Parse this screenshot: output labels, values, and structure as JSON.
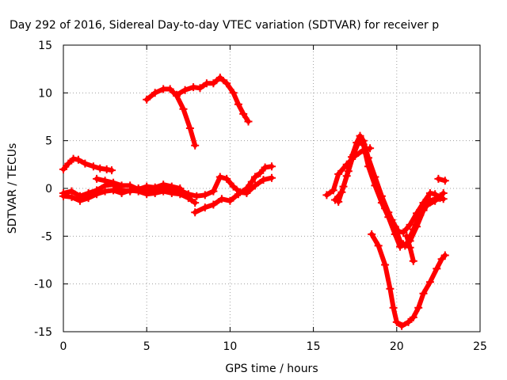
{
  "chart_data": {
    "type": "scatter",
    "title": "Day 292 of 2016, Sidereal Day-to-day VTEC variation (SDTVAR) for receiver p",
    "xlabel": "GPS time / hours",
    "ylabel": "SDTVAR / TECUs",
    "xlim": [
      0,
      25
    ],
    "ylim": [
      -15,
      15
    ],
    "x_ticks": [
      "0",
      "5",
      "10",
      "15",
      "20",
      "25"
    ],
    "y_ticks": [
      "15",
      "10",
      "5",
      "0",
      "-5",
      "-10",
      "-15"
    ],
    "x_tick_values": [
      0,
      5,
      10,
      15,
      20,
      25
    ],
    "y_tick_values": [
      15,
      10,
      5,
      0,
      -5,
      -10,
      -15
    ],
    "grid": true,
    "marker": "plus",
    "color": "#ff0000",
    "series": [
      {
        "points": [
          [
            5.0,
            9.3
          ],
          [
            5.5,
            10.0
          ],
          [
            6.0,
            10.4
          ],
          [
            6.4,
            10.4
          ],
          [
            6.8,
            9.7
          ],
          [
            7.2,
            8.3
          ],
          [
            7.6,
            6.3
          ],
          [
            7.9,
            4.5
          ]
        ]
      },
      {
        "points": [
          [
            6.8,
            9.8
          ],
          [
            7.3,
            10.3
          ],
          [
            7.8,
            10.6
          ],
          [
            8.2,
            10.5
          ],
          [
            8.6,
            11.0
          ],
          [
            9.0,
            11.0
          ],
          [
            9.4,
            11.6
          ],
          [
            9.8,
            11.0
          ],
          [
            10.2,
            10.0
          ],
          [
            10.5,
            8.8
          ],
          [
            10.8,
            7.8
          ],
          [
            11.1,
            7.0
          ]
        ]
      },
      {
        "points": [
          [
            0.0,
            2.0
          ],
          [
            0.3,
            2.6
          ],
          [
            0.6,
            3.1
          ],
          [
            0.9,
            3.0
          ],
          [
            1.3,
            2.6
          ],
          [
            1.8,
            2.3
          ],
          [
            2.2,
            2.1
          ],
          [
            2.6,
            2.0
          ],
          [
            2.9,
            1.9
          ]
        ]
      },
      {
        "points": [
          [
            0.0,
            -0.5
          ],
          [
            0.5,
            -0.3
          ],
          [
            1.0,
            -0.8
          ],
          [
            1.5,
            -0.5
          ],
          [
            2.0,
            -0.2
          ],
          [
            2.5,
            0.3
          ],
          [
            3.0,
            0.4
          ],
          [
            3.5,
            -0.2
          ],
          [
            4.0,
            -0.3
          ],
          [
            4.5,
            0.0
          ],
          [
            5.0,
            -0.1
          ],
          [
            5.5,
            -0.1
          ],
          [
            6.0,
            0.2
          ],
          [
            6.5,
            -0.2
          ],
          [
            7.0,
            -0.2
          ],
          [
            7.5,
            -0.6
          ],
          [
            8.0,
            -0.8
          ],
          [
            8.5,
            -0.7
          ],
          [
            9.0,
            -0.3
          ],
          [
            9.4,
            1.2
          ],
          [
            9.8,
            1.0
          ],
          [
            10.2,
            0.2
          ],
          [
            10.6,
            -0.4
          ],
          [
            11.0,
            -0.5
          ],
          [
            11.5,
            0.3
          ],
          [
            12.0,
            0.9
          ],
          [
            12.5,
            1.1
          ]
        ]
      },
      {
        "points": [
          [
            0.0,
            -0.8
          ],
          [
            0.5,
            -0.9
          ],
          [
            1.0,
            -1.3
          ],
          [
            1.5,
            -1.0
          ],
          [
            2.0,
            -0.6
          ],
          [
            2.5,
            -0.3
          ],
          [
            3.0,
            -0.2
          ],
          [
            3.5,
            -0.5
          ],
          [
            4.0,
            -0.2
          ],
          [
            4.5,
            -0.3
          ],
          [
            5.0,
            -0.6
          ],
          [
            5.5,
            -0.5
          ],
          [
            6.0,
            -0.3
          ],
          [
            6.5,
            -0.5
          ],
          [
            7.0,
            -0.6
          ],
          [
            7.5,
            -1.0
          ],
          [
            7.9,
            -1.5
          ]
        ]
      },
      {
        "points": [
          [
            2.0,
            1.0
          ],
          [
            2.5,
            0.8
          ],
          [
            3.0,
            0.6
          ],
          [
            3.5,
            0.3
          ],
          [
            4.0,
            0.3
          ],
          [
            4.5,
            -0.1
          ],
          [
            5.0,
            0.2
          ],
          [
            5.5,
            0.1
          ],
          [
            6.0,
            0.4
          ],
          [
            6.5,
            0.2
          ],
          [
            7.0,
            0.0
          ]
        ]
      },
      {
        "points": [
          [
            7.9,
            -2.5
          ],
          [
            8.5,
            -2.0
          ],
          [
            9.0,
            -1.7
          ],
          [
            9.5,
            -1.1
          ],
          [
            10.0,
            -1.3
          ],
          [
            10.5,
            -0.6
          ],
          [
            11.0,
            0.0
          ],
          [
            11.3,
            0.7
          ],
          [
            11.5,
            1.2
          ],
          [
            11.8,
            1.6
          ],
          [
            12.1,
            2.2
          ],
          [
            12.5,
            2.3
          ]
        ]
      },
      {
        "points": [
          [
            15.8,
            -0.7
          ],
          [
            16.2,
            -0.2
          ],
          [
            16.5,
            1.5
          ],
          [
            17.0,
            2.5
          ],
          [
            17.5,
            3.4
          ],
          [
            18.0,
            4.0
          ],
          [
            18.4,
            4.2
          ]
        ]
      },
      {
        "points": [
          [
            16.3,
            -1.2
          ],
          [
            16.7,
            -0.4
          ],
          [
            17.0,
            1.3
          ],
          [
            17.3,
            3.3
          ],
          [
            17.6,
            4.8
          ],
          [
            17.8,
            5.5
          ],
          [
            18.0,
            5.0
          ],
          [
            18.3,
            3.2
          ],
          [
            18.7,
            1.2
          ],
          [
            19.1,
            -0.8
          ],
          [
            19.5,
            -2.5
          ],
          [
            19.9,
            -4.0
          ],
          [
            20.2,
            -5.5
          ],
          [
            20.5,
            -6.0
          ],
          [
            20.8,
            -5.5
          ],
          [
            21.2,
            -4.0
          ],
          [
            21.6,
            -2.3
          ],
          [
            22.0,
            -1.3
          ],
          [
            22.4,
            -1.0
          ],
          [
            22.8,
            -1.1
          ]
        ]
      },
      {
        "points": [
          [
            16.5,
            -1.4
          ],
          [
            16.8,
            0.2
          ],
          [
            17.1,
            1.8
          ],
          [
            17.4,
            3.5
          ],
          [
            17.7,
            4.8
          ],
          [
            18.0,
            4.6
          ],
          [
            18.3,
            2.3
          ],
          [
            18.7,
            0.3
          ],
          [
            19.1,
            -1.5
          ],
          [
            19.5,
            -3.0
          ],
          [
            19.9,
            -4.8
          ],
          [
            20.2,
            -6.1
          ],
          [
            20.6,
            -5.8
          ],
          [
            21.0,
            -4.3
          ],
          [
            21.4,
            -2.8
          ],
          [
            21.8,
            -1.8
          ],
          [
            22.3,
            -1.3
          ],
          [
            22.8,
            -0.5
          ]
        ]
      },
      {
        "points": [
          [
            19.3,
            -2.1
          ],
          [
            19.7,
            -3.3
          ],
          [
            20.1,
            -4.5
          ],
          [
            20.4,
            -4.6
          ],
          [
            20.8,
            -3.8
          ],
          [
            21.2,
            -2.6
          ],
          [
            21.6,
            -1.5
          ],
          [
            22.0,
            -0.5
          ],
          [
            22.3,
            -0.6
          ],
          [
            22.6,
            -1.0
          ]
        ]
      },
      {
        "points": [
          [
            20.6,
            -5.0
          ],
          [
            20.8,
            -6.2
          ],
          [
            21.0,
            -7.6
          ]
        ]
      },
      {
        "points": [
          [
            22.5,
            1.0
          ],
          [
            22.9,
            0.8
          ]
        ]
      },
      {
        "points": [
          [
            18.5,
            -4.8
          ],
          [
            18.9,
            -6.0
          ],
          [
            19.3,
            -8.0
          ],
          [
            19.6,
            -10.5
          ],
          [
            19.8,
            -12.5
          ],
          [
            20.0,
            -14.0
          ],
          [
            20.3,
            -14.4
          ],
          [
            20.7,
            -14.0
          ],
          [
            21.0,
            -13.5
          ],
          [
            21.3,
            -12.5
          ],
          [
            21.6,
            -11.0
          ],
          [
            22.0,
            -9.8
          ],
          [
            22.4,
            -8.4
          ],
          [
            22.7,
            -7.4
          ],
          [
            22.9,
            -7.0
          ]
        ]
      }
    ]
  }
}
